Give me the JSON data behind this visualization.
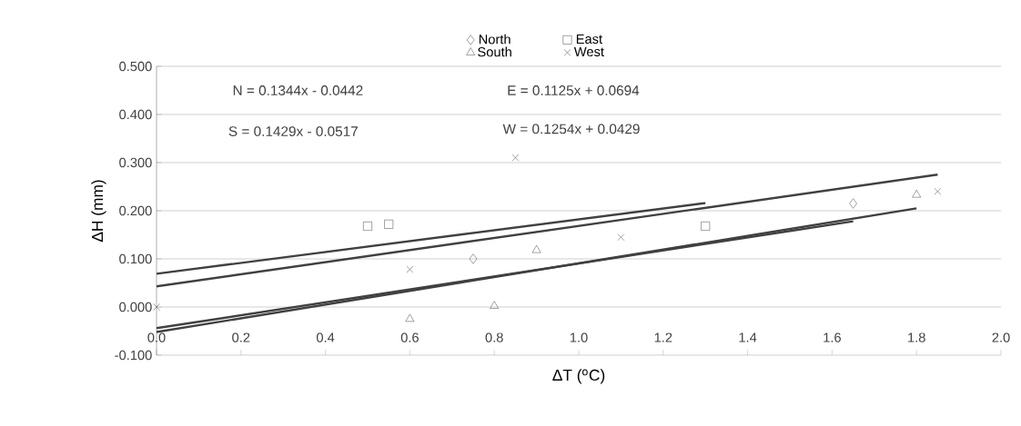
{
  "chart_data": {
    "type": "scatter",
    "xlabel": "ΔT ($^{o}$C)",
    "ylabel": "ΔH (mm)",
    "xlim": [
      0,
      2
    ],
    "ylim": [
      -0.1,
      0.5
    ],
    "xticks": [
      {
        "value": 0,
        "label": "0.0"
      },
      {
        "value": 0.2,
        "label": "0.2"
      },
      {
        "value": 0.4,
        "label": "0.4"
      },
      {
        "value": 0.6,
        "label": "0.6"
      },
      {
        "value": 0.8,
        "label": "0.8"
      },
      {
        "value": 1,
        "label": "1.0"
      },
      {
        "value": 1.2,
        "label": "1.2"
      },
      {
        "value": 1.4,
        "label": "1.4"
      },
      {
        "value": 1.6,
        "label": "1.6"
      },
      {
        "value": 1.8,
        "label": "1.8"
      },
      {
        "value": 2,
        "label": "2.0"
      }
    ],
    "yticks": [
      {
        "value": -0.1,
        "label": "-0.100"
      },
      {
        "value": 0,
        "label": "0.000"
      },
      {
        "value": 0.1,
        "label": "0.100"
      },
      {
        "value": 0.2,
        "label": "0.200"
      },
      {
        "value": 0.3,
        "label": "0.300"
      },
      {
        "value": 0.4,
        "label": "0.400"
      },
      {
        "value": 0.5,
        "label": "0.500"
      }
    ],
    "grid": "y",
    "legend": "top",
    "series": [
      {
        "name": "North",
        "marker": "diamond",
        "color": "#505050",
        "x": [
          0.75,
          1.65
        ],
        "values": [
          0.1,
          0.215
        ]
      },
      {
        "name": "East",
        "marker": "square",
        "color": "#505050",
        "x": [
          0.5,
          0.55,
          1.3
        ],
        "values": [
          0.168,
          0.172,
          0.168
        ]
      },
      {
        "name": "South",
        "marker": "triangle",
        "color": "#505050",
        "x": [
          0.6,
          0.8,
          0.9,
          1.8
        ],
        "values": [
          -0.025,
          0.002,
          0.118,
          0.233
        ]
      },
      {
        "name": "West",
        "marker": "cross",
        "color": "#505050",
        "x": [
          0,
          0.6,
          0.85,
          1.1,
          1.85
        ],
        "values": [
          0,
          0.078,
          0.31,
          0.145,
          0.24
        ]
      },
      {
        "type": "line",
        "marker": "none",
        "color": "#404040",
        "x": [
          0,
          1.65
        ],
        "values": [
          -0.044,
          0.178
        ]
      },
      {
        "type": "line",
        "marker": "none",
        "color": "#404040",
        "x": [
          0,
          1.3
        ],
        "values": [
          0.069,
          0.216
        ]
      },
      {
        "type": "line",
        "marker": "none",
        "color": "#404040",
        "x": [
          0,
          1.8
        ],
        "values": [
          -0.052,
          0.205
        ]
      },
      {
        "type": "line",
        "marker": "none",
        "color": "#404040",
        "x": [
          0,
          1.85
        ],
        "values": [
          0.043,
          0.275
        ]
      }
    ],
    "annotations": [
      "N = 0.1344x - 0.0442",
      "E = 0.1125x + 0.0694",
      "S = 0.1429x - 0.0517",
      "W = 0.1254x + 0.0429"
    ]
  }
}
